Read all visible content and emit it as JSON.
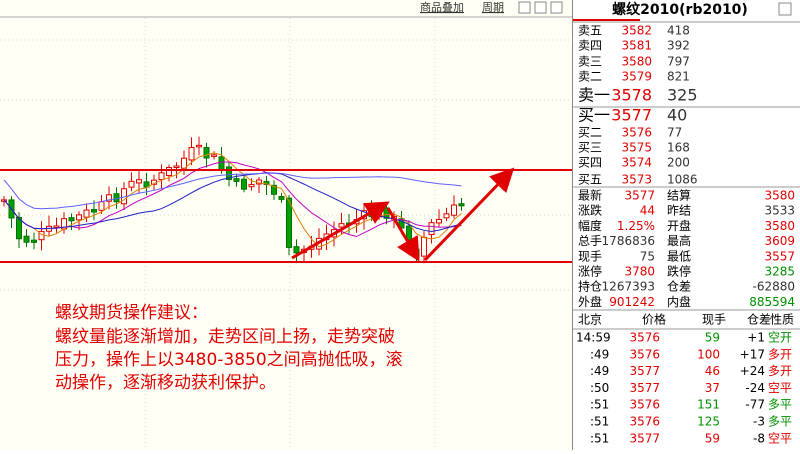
{
  "toolbar": {
    "links": [
      "商品叠加",
      "周期"
    ]
  },
  "panel": {
    "title": "螺纹2010(rb2010)",
    "asks": [
      {
        "label": "卖五",
        "price": "3582",
        "volume": "418"
      },
      {
        "label": "卖四",
        "price": "3581",
        "volume": "392"
      },
      {
        "label": "卖三",
        "price": "3580",
        "volume": "797"
      },
      {
        "label": "卖二",
        "price": "3579",
        "volume": "821"
      },
      {
        "label": "卖一",
        "price": "3578",
        "volume": "325"
      }
    ],
    "bids": [
      {
        "label": "买一",
        "price": "3577",
        "volume": "40"
      },
      {
        "label": "买二",
        "price": "3576",
        "volume": "77"
      },
      {
        "label": "买三",
        "price": "3575",
        "volume": "168"
      },
      {
        "label": "买四",
        "price": "3574",
        "volume": "200"
      },
      {
        "label": "买五",
        "price": "3573",
        "volume": "1086"
      }
    ],
    "quotes": [
      [
        {
          "label": "最新",
          "value": "3577",
          "color": "#e00000"
        },
        {
          "label": "结算",
          "value": "3580",
          "color": "#e00000"
        }
      ],
      [
        {
          "label": "涨跌",
          "value": "44",
          "color": "#e00000"
        },
        {
          "label": "昨结",
          "value": "3533",
          "color": "#333333"
        }
      ],
      [
        {
          "label": "幅度",
          "value": "1.25%",
          "color": "#e00000"
        },
        {
          "label": "开盘",
          "value": "3580",
          "color": "#e00000"
        }
      ],
      [
        {
          "label": "总手",
          "value": "1786836",
          "color": "#333333"
        },
        {
          "label": "最高",
          "value": "3609",
          "color": "#e00000"
        }
      ],
      [
        {
          "label": "现手",
          "value": "75",
          "color": "#333333"
        },
        {
          "label": "最低",
          "value": "3557",
          "color": "#e00000"
        }
      ],
      [
        {
          "label": "涨停",
          "value": "3780",
          "color": "#e00000"
        },
        {
          "label": "跌停",
          "value": "3285",
          "color": "#009000"
        }
      ],
      [
        {
          "label": "持仓",
          "value": "1267393",
          "color": "#333333"
        },
        {
          "label": "仓差",
          "value": "-62880",
          "color": "#333333"
        }
      ],
      [
        {
          "label": "外盘",
          "value": "901242",
          "color": "#e00000"
        },
        {
          "label": "内盘",
          "value": "885594",
          "color": "#009000"
        }
      ]
    ],
    "tick_header": [
      "北京",
      "价格",
      "现手",
      "仓差",
      "性质"
    ],
    "ticks": [
      {
        "cells": [
          "14:59",
          "3576",
          "59",
          "+1",
          "空开"
        ],
        "color": "#009000"
      },
      {
        "cells": [
          ":49",
          "3576",
          "100",
          "+17",
          "多开"
        ],
        "color": "#e00000"
      },
      {
        "cells": [
          ":49",
          "3577",
          "46",
          "+24",
          "多开"
        ],
        "color": "#e00000"
      },
      {
        "cells": [
          ":50",
          "3577",
          "37",
          "-24",
          "空平"
        ],
        "color": "#e00000"
      },
      {
        "cells": [
          ":51",
          "3576",
          "151",
          "-77",
          "多平"
        ],
        "color": "#009000"
      },
      {
        "cells": [
          ":51",
          "3576",
          "125",
          "-3",
          "多平"
        ],
        "color": "#009000"
      },
      {
        "cells": [
          ":51",
          "3577",
          "59",
          "-8",
          "空平"
        ],
        "color": "#e00000"
      }
    ]
  },
  "annotation": {
    "title": "螺纹期货操作建议：",
    "lines": [
      "螺纹量能逐渐增加，走势区间上扬，走势突破",
      "压力，操作上以3480-3850之间高抛低吸，滚",
      "动操作，逐渐移动获利保护。"
    ]
  }
}
